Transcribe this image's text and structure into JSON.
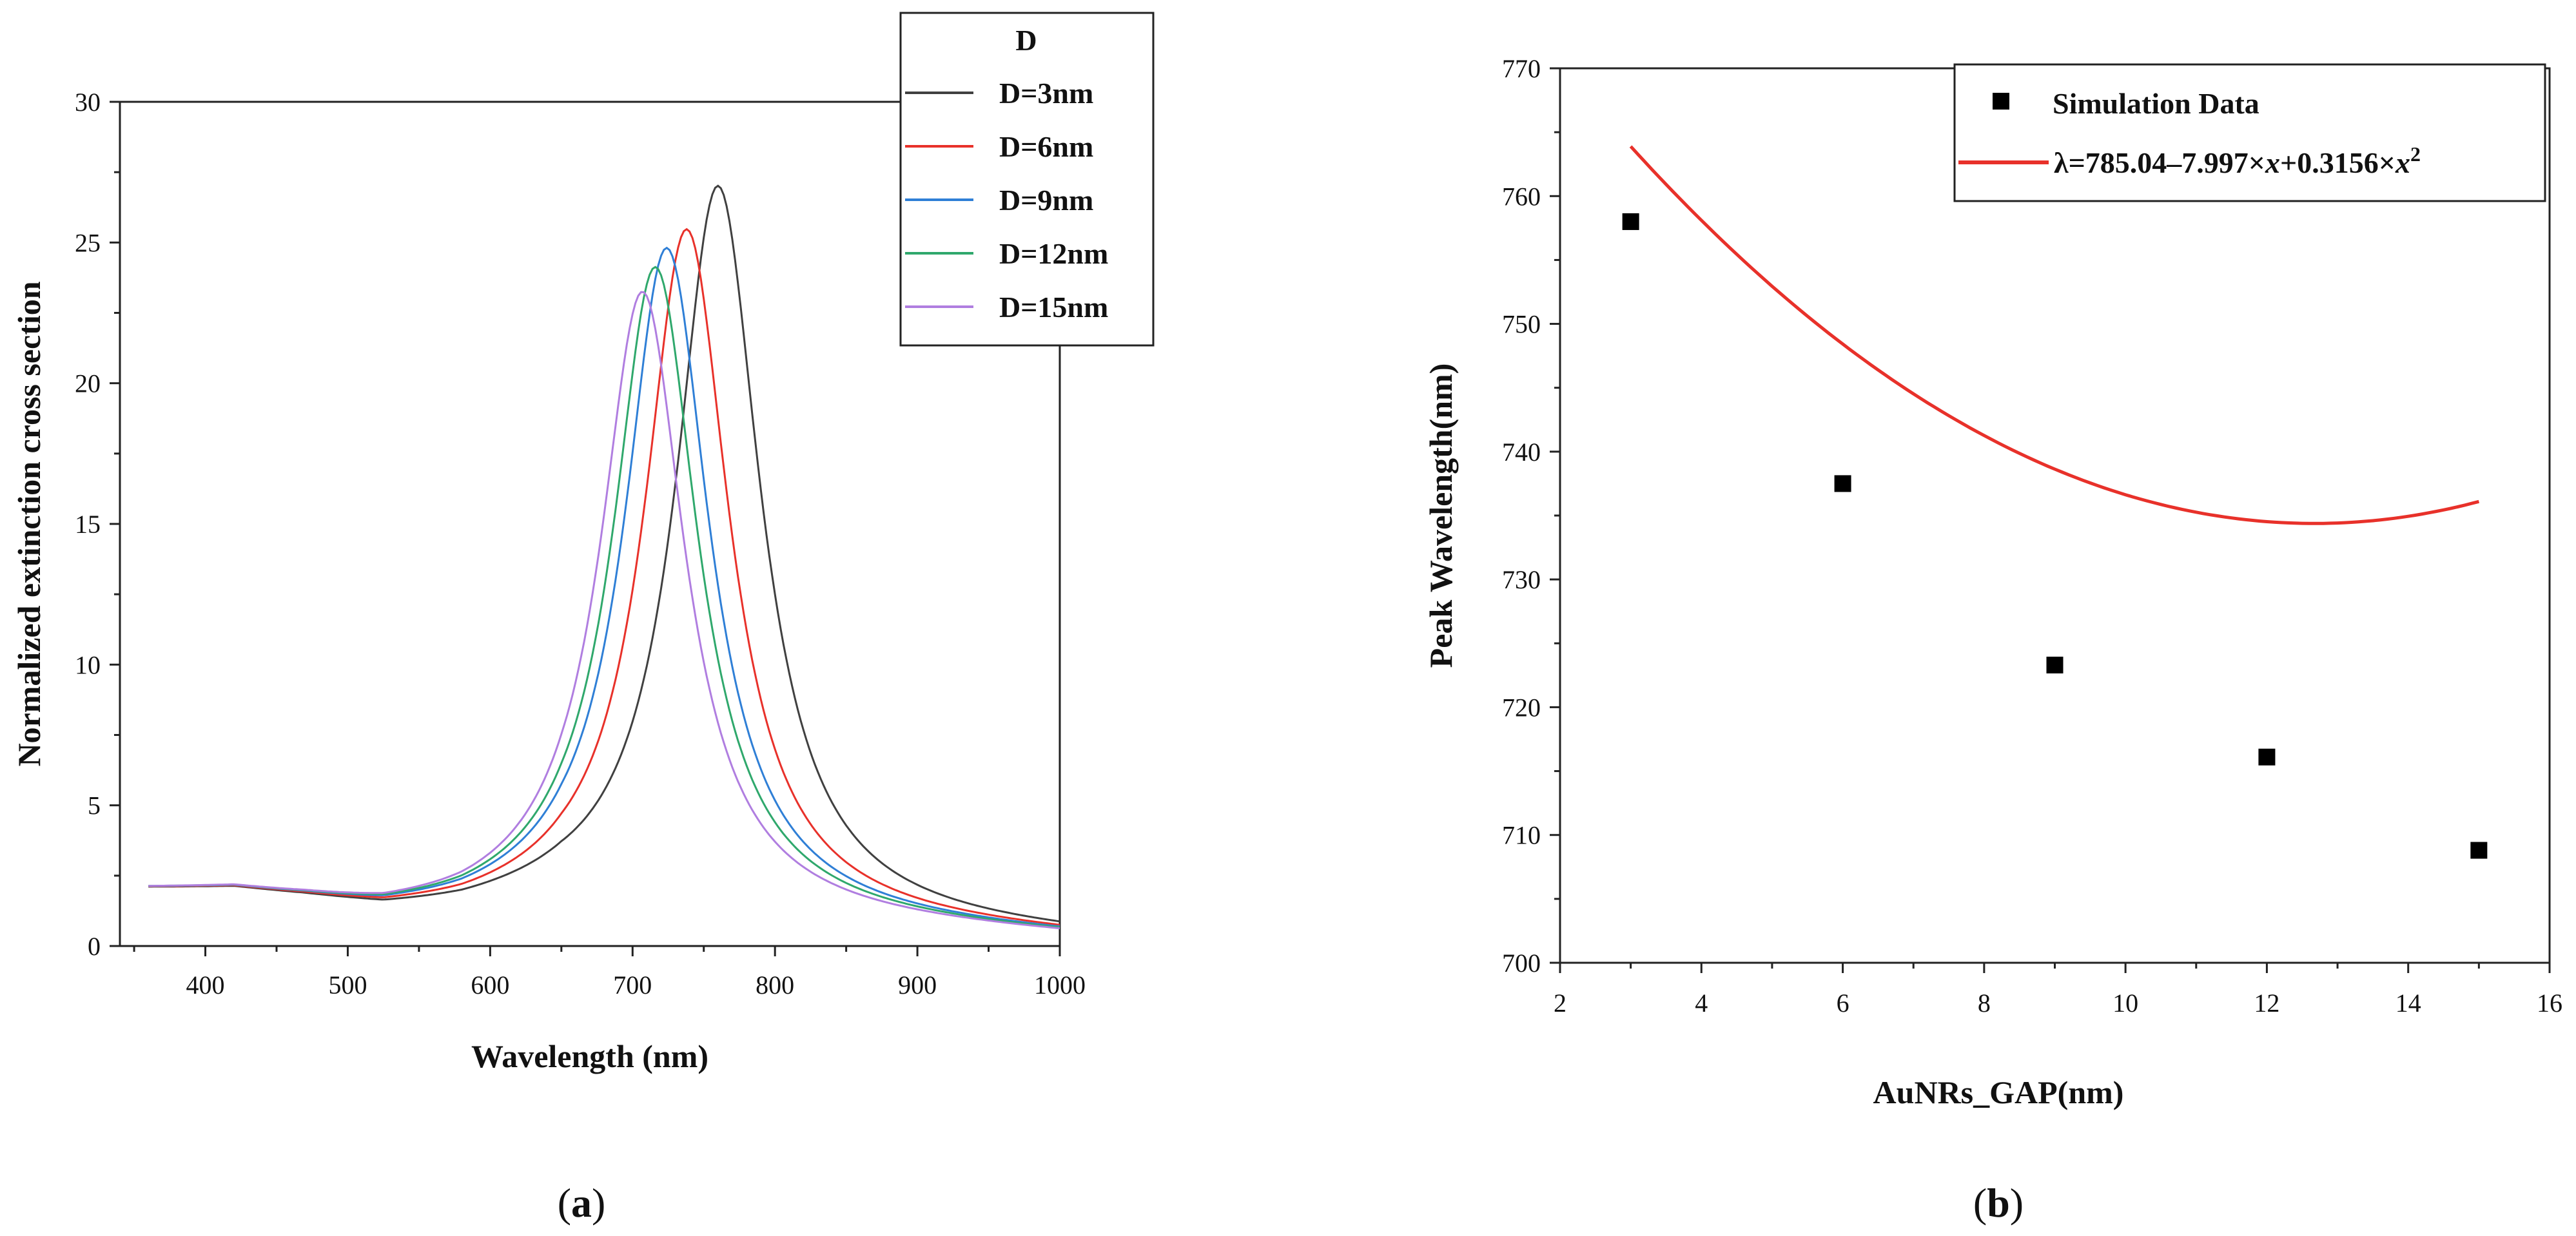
{
  "chart_data": [
    {
      "type": "line",
      "title": "",
      "xlabel": "Wavelength (nm)",
      "ylabel": "Normalized extinction cross section",
      "xlim": [
        340,
        1000
      ],
      "ylim": [
        0,
        30
      ],
      "xticks": [
        "400",
        "500",
        "600",
        "700",
        "800",
        "900",
        "1000"
      ],
      "yticks": [
        "0",
        "5",
        "10",
        "15",
        "20",
        "25",
        "30"
      ],
      "grid": false,
      "legend_title": "D",
      "legend_position": "top-right",
      "subfigure_label": "(a)",
      "subfigure_letter": "a",
      "series": [
        {
          "name": "D=3nm",
          "color": "#404040",
          "peak": 760,
          "amp": 27.1
        },
        {
          "name": "D=6nm",
          "color": "#e8312a",
          "peak": 738,
          "amp": 25.5
        },
        {
          "name": "D=9nm",
          "color": "#2f7fd6",
          "peak": 724,
          "amp": 24.8
        },
        {
          "name": "D=12nm",
          "color": "#2fa86c",
          "peak": 716,
          "amp": 24.1
        },
        {
          "name": "D=15nm",
          "color": "#b07ee0",
          "peak": 707,
          "amp": 23.2
        }
      ],
      "x_range": [
        360,
        1000
      ],
      "width_param": 36,
      "baseline": [
        [
          360,
          1.9
        ],
        [
          420,
          1.85
        ],
        [
          470,
          1.5
        ],
        [
          525,
          1.05
        ],
        [
          580,
          1.0
        ],
        [
          650,
          1.2
        ],
        [
          1000,
          0.3
        ]
      ]
    },
    {
      "type": "scatter",
      "title": "",
      "xlabel": "AuNRs_GAP(nm)",
      "ylabel": "Peak Wavelength(nm)",
      "xlim": [
        2,
        16
      ],
      "ylim": [
        700,
        770
      ],
      "xticks": [
        "2",
        "4",
        "6",
        "8",
        "10",
        "12",
        "14",
        "16"
      ],
      "yticks": [
        "700",
        "710",
        "720",
        "730",
        "740",
        "750",
        "760",
        "770"
      ],
      "grid": false,
      "legend_position": "top-right",
      "subfigure_label": "(b)",
      "subfigure_letter": "b",
      "series": [
        {
          "name": "Simulation Data",
          "color": "#000000",
          "x": [
            3,
            6,
            9,
            12,
            15
          ],
          "y": [
            758.0,
            737.5,
            723.3,
            716.1,
            708.8
          ]
        }
      ],
      "fit": {
        "color": "#e8312a",
        "coefficients": [
          785.04,
          -7.997,
          0.3156
        ],
        "x_range": [
          3,
          15
        ],
        "legend_parts": [
          "λ=785.04–7.997×",
          "x",
          "+0.3156×",
          "x",
          "2"
        ]
      }
    }
  ]
}
